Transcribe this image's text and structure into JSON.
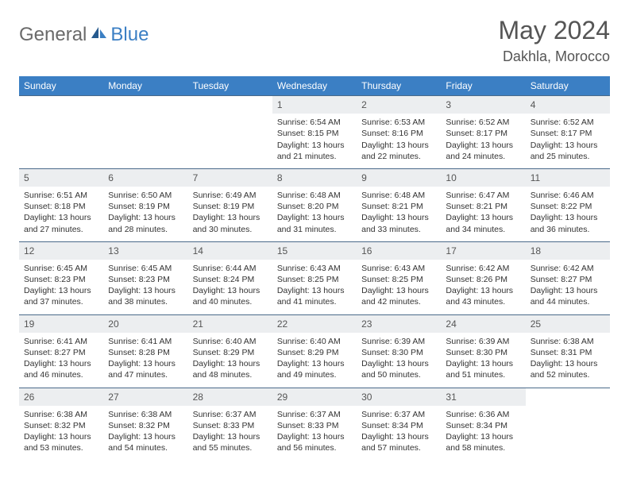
{
  "logo": {
    "part1": "General",
    "part2": "Blue"
  },
  "title": "May 2024",
  "location": "Dakhla, Morocco",
  "colors": {
    "header_bg": "#3b7fc4",
    "header_text": "#ffffff",
    "daynum_bg": "#eceef0",
    "row_border": "#4a6a8a",
    "body_text": "#333333",
    "logo_gray": "#6a6a6a",
    "logo_blue": "#3b7fc4"
  },
  "weekdays": [
    "Sunday",
    "Monday",
    "Tuesday",
    "Wednesday",
    "Thursday",
    "Friday",
    "Saturday"
  ],
  "weeks": [
    [
      {
        "blank": true
      },
      {
        "blank": true
      },
      {
        "blank": true
      },
      {
        "day": "1",
        "sunrise": "6:54 AM",
        "sunset": "8:15 PM",
        "daylight": "13 hours and 21 minutes."
      },
      {
        "day": "2",
        "sunrise": "6:53 AM",
        "sunset": "8:16 PM",
        "daylight": "13 hours and 22 minutes."
      },
      {
        "day": "3",
        "sunrise": "6:52 AM",
        "sunset": "8:17 PM",
        "daylight": "13 hours and 24 minutes."
      },
      {
        "day": "4",
        "sunrise": "6:52 AM",
        "sunset": "8:17 PM",
        "daylight": "13 hours and 25 minutes."
      }
    ],
    [
      {
        "day": "5",
        "sunrise": "6:51 AM",
        "sunset": "8:18 PM",
        "daylight": "13 hours and 27 minutes."
      },
      {
        "day": "6",
        "sunrise": "6:50 AM",
        "sunset": "8:19 PM",
        "daylight": "13 hours and 28 minutes."
      },
      {
        "day": "7",
        "sunrise": "6:49 AM",
        "sunset": "8:19 PM",
        "daylight": "13 hours and 30 minutes."
      },
      {
        "day": "8",
        "sunrise": "6:48 AM",
        "sunset": "8:20 PM",
        "daylight": "13 hours and 31 minutes."
      },
      {
        "day": "9",
        "sunrise": "6:48 AM",
        "sunset": "8:21 PM",
        "daylight": "13 hours and 33 minutes."
      },
      {
        "day": "10",
        "sunrise": "6:47 AM",
        "sunset": "8:21 PM",
        "daylight": "13 hours and 34 minutes."
      },
      {
        "day": "11",
        "sunrise": "6:46 AM",
        "sunset": "8:22 PM",
        "daylight": "13 hours and 36 minutes."
      }
    ],
    [
      {
        "day": "12",
        "sunrise": "6:45 AM",
        "sunset": "8:23 PM",
        "daylight": "13 hours and 37 minutes."
      },
      {
        "day": "13",
        "sunrise": "6:45 AM",
        "sunset": "8:23 PM",
        "daylight": "13 hours and 38 minutes."
      },
      {
        "day": "14",
        "sunrise": "6:44 AM",
        "sunset": "8:24 PM",
        "daylight": "13 hours and 40 minutes."
      },
      {
        "day": "15",
        "sunrise": "6:43 AM",
        "sunset": "8:25 PM",
        "daylight": "13 hours and 41 minutes."
      },
      {
        "day": "16",
        "sunrise": "6:43 AM",
        "sunset": "8:25 PM",
        "daylight": "13 hours and 42 minutes."
      },
      {
        "day": "17",
        "sunrise": "6:42 AM",
        "sunset": "8:26 PM",
        "daylight": "13 hours and 43 minutes."
      },
      {
        "day": "18",
        "sunrise": "6:42 AM",
        "sunset": "8:27 PM",
        "daylight": "13 hours and 44 minutes."
      }
    ],
    [
      {
        "day": "19",
        "sunrise": "6:41 AM",
        "sunset": "8:27 PM",
        "daylight": "13 hours and 46 minutes."
      },
      {
        "day": "20",
        "sunrise": "6:41 AM",
        "sunset": "8:28 PM",
        "daylight": "13 hours and 47 minutes."
      },
      {
        "day": "21",
        "sunrise": "6:40 AM",
        "sunset": "8:29 PM",
        "daylight": "13 hours and 48 minutes."
      },
      {
        "day": "22",
        "sunrise": "6:40 AM",
        "sunset": "8:29 PM",
        "daylight": "13 hours and 49 minutes."
      },
      {
        "day": "23",
        "sunrise": "6:39 AM",
        "sunset": "8:30 PM",
        "daylight": "13 hours and 50 minutes."
      },
      {
        "day": "24",
        "sunrise": "6:39 AM",
        "sunset": "8:30 PM",
        "daylight": "13 hours and 51 minutes."
      },
      {
        "day": "25",
        "sunrise": "6:38 AM",
        "sunset": "8:31 PM",
        "daylight": "13 hours and 52 minutes."
      }
    ],
    [
      {
        "day": "26",
        "sunrise": "6:38 AM",
        "sunset": "8:32 PM",
        "daylight": "13 hours and 53 minutes."
      },
      {
        "day": "27",
        "sunrise": "6:38 AM",
        "sunset": "8:32 PM",
        "daylight": "13 hours and 54 minutes."
      },
      {
        "day": "28",
        "sunrise": "6:37 AM",
        "sunset": "8:33 PM",
        "daylight": "13 hours and 55 minutes."
      },
      {
        "day": "29",
        "sunrise": "6:37 AM",
        "sunset": "8:33 PM",
        "daylight": "13 hours and 56 minutes."
      },
      {
        "day": "30",
        "sunrise": "6:37 AM",
        "sunset": "8:34 PM",
        "daylight": "13 hours and 57 minutes."
      },
      {
        "day": "31",
        "sunrise": "6:36 AM",
        "sunset": "8:34 PM",
        "daylight": "13 hours and 58 minutes."
      },
      {
        "blank": true
      }
    ]
  ],
  "labels": {
    "sunrise": "Sunrise:",
    "sunset": "Sunset:",
    "daylight": "Daylight:"
  }
}
